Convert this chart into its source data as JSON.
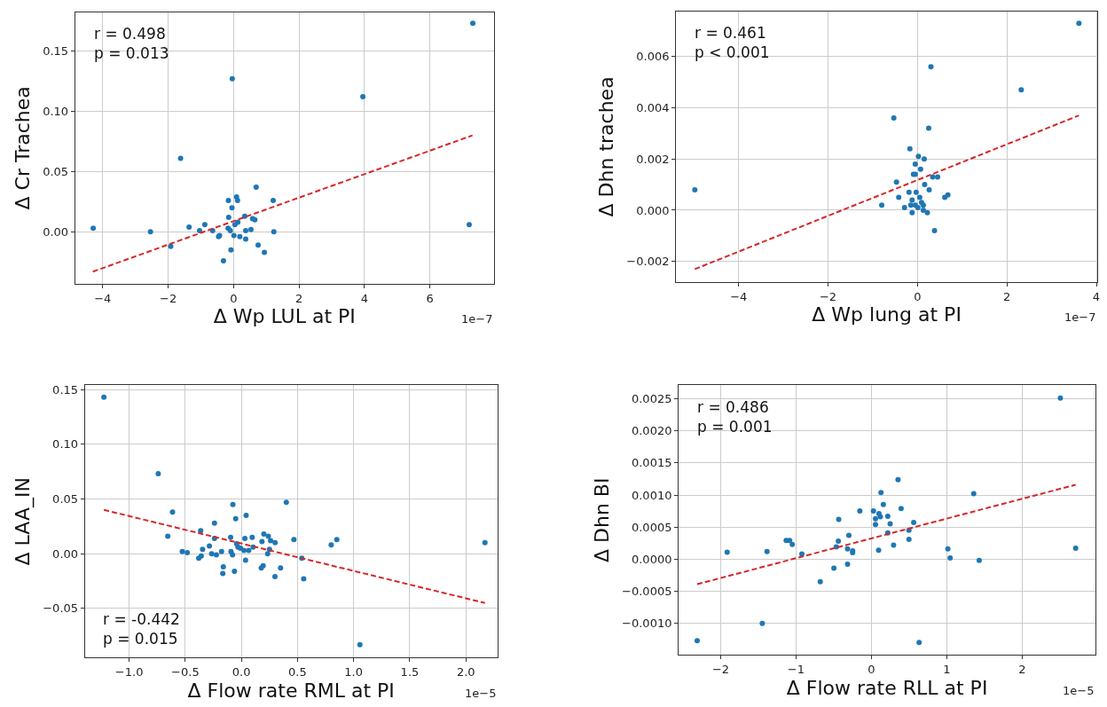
{
  "chart_data": [
    {
      "type": "scatter",
      "xlabel": "Δ Wp LUL at PI",
      "ylabel": "Δ Cr Trachea",
      "grid": true,
      "marker": "circle",
      "xlim": [
        -4.84,
        7.95
      ],
      "ylim": [
        -0.043,
        0.182
      ],
      "xticks": [
        {
          "value": -4,
          "label": "−4"
        },
        {
          "value": -2,
          "label": "−2"
        },
        0,
        2,
        4,
        6
      ],
      "yticks": [
        {
          "value": 0,
          "label": "0.00"
        },
        {
          "value": 0.05,
          "label": "0.05"
        },
        {
          "value": 0.1,
          "label": "0.10"
        },
        {
          "value": 0.15,
          "label": "0.15"
        }
      ],
      "annotations": [
        "r = 0.498\np = 0.013",
        "1e−7"
      ],
      "series": [
        {
          "color": "#1f77b4",
          "x": [
            7.31,
            -0.04,
            3.95,
            -1.62,
            0.69,
            0.09,
            0.12,
            -0.16,
            1.21,
            -0.05,
            -0.15,
            0.34,
            0.58,
            0.65,
            0.13,
            -0.88,
            -4.29,
            -1.36,
            7.2,
            -2.54,
            -1.04,
            -0.64,
            1.23,
            -0.43,
            -0.46,
            -0.17,
            -0.1,
            0.01,
            0.19,
            0.37,
            0.53,
            0.37,
            -1.92,
            0.75,
            -0.08,
            0.94,
            -0.31,
            0.04
          ],
          "values": [
            0.173,
            0.127,
            0.112,
            0.061,
            0.037,
            0.029,
            0.026,
            0.026,
            0.026,
            0.02,
            0.012,
            0.013,
            0.011,
            0.01,
            0.008,
            0.006,
            0.003,
            0.004,
            0.006,
            0.0,
            0.001,
            0.001,
            0.0,
            -0.003,
            -0.004,
            0.003,
            0.001,
            -0.003,
            -0.004,
            -0.006,
            0.002,
            0.001,
            -0.012,
            -0.011,
            -0.015,
            -0.017,
            -0.024,
            0.006
          ]
        },
        {
          "type": "line",
          "marker": "none",
          "color": "#d62728",
          "line_style": "dashed",
          "x": [
            -4.3,
            7.3
          ],
          "values": [
            -0.033,
            0.08
          ]
        }
      ]
    },
    {
      "type": "scatter",
      "xlabel": "Δ Wp lung at PI",
      "ylabel": "Δ Dhn trachea",
      "grid": true,
      "marker": "circle",
      "xlim": [
        -5.4,
        4.02
      ],
      "ylim": [
        -0.0028,
        0.00776
      ],
      "xticks": [
        {
          "value": -4,
          "label": "−4"
        },
        {
          "value": -2,
          "label": "−2"
        },
        0,
        2,
        4
      ],
      "yticks": [
        {
          "value": -0.002,
          "label": "−0.002"
        },
        {
          "value": 0,
          "label": "0.000"
        },
        {
          "value": 0.002,
          "label": "0.002"
        },
        {
          "value": 0.004,
          "label": "0.004"
        },
        {
          "value": 0.006,
          "label": "0.006"
        }
      ],
      "annotations": [
        "r = 0.461\np < 0.001",
        "1e−7"
      ],
      "series": [
        {
          "color": "#1f77b4",
          "x": [
            3.61,
            0.3,
            2.32,
            -0.53,
            0.25,
            -0.17,
            0.02,
            0.15,
            -0.05,
            0.07,
            -0.09,
            -0.05,
            0.34,
            0.45,
            -0.47,
            0.16,
            0.26,
            -4.98,
            -0.03,
            -0.19,
            0.68,
            0.61,
            -0.42,
            0.05,
            -0.12,
            0.09,
            -0.15,
            0.13,
            -0.8,
            -0.05,
            0.01,
            -0.29,
            0.13,
            0.22,
            -0.12,
            0.38
          ],
          "values": [
            0.0073,
            0.0056,
            0.0047,
            0.0036,
            0.0032,
            0.0024,
            0.0021,
            0.002,
            0.0018,
            0.0016,
            0.0014,
            0.0014,
            0.0013,
            0.0013,
            0.0011,
            0.001,
            0.0008,
            0.0008,
            0.0007,
            0.0007,
            0.0006,
            0.0005,
            0.0005,
            0.0005,
            0.0004,
            0.0003,
            0.0002,
            0.0002,
            0.0002,
            0.0002,
            0.0001,
            0.0001,
            0.0,
            -0.0001,
            -0.0001,
            -0.0008
          ]
        },
        {
          "type": "line",
          "marker": "none",
          "color": "#d62728",
          "line_style": "dashed",
          "x": [
            -4.98,
            3.61
          ],
          "values": [
            -0.0023,
            0.0037
          ]
        }
      ]
    },
    {
      "type": "scatter",
      "xlabel": "Δ Flow rate RML at PI",
      "ylabel": "Δ LAA_IN",
      "grid": true,
      "marker": "circle",
      "xlim": [
        -1.394,
        2.28
      ],
      "ylim": [
        -0.0948,
        0.1538
      ],
      "xticks": [
        {
          "value": -1,
          "label": "−1.0"
        },
        {
          "value": -0.5,
          "label": "−0.5"
        },
        {
          "value": 0,
          "label": "0.0"
        },
        {
          "value": 0.5,
          "label": "0.5"
        },
        {
          "value": 1,
          "label": "1.0"
        },
        {
          "value": 1.5,
          "label": "1.5"
        },
        {
          "value": 2,
          "label": "2.0"
        }
      ],
      "yticks": [
        {
          "value": -0.05,
          "label": "−0.05"
        },
        {
          "value": 0,
          "label": "0.00"
        },
        {
          "value": 0.05,
          "label": "0.05"
        },
        {
          "value": 0.1,
          "label": "0.10"
        },
        {
          "value": 0.15,
          "label": "0.15"
        }
      ],
      "annotations": [
        "r = -0.442\np = 0.015",
        "1e−5"
      ],
      "series": [
        {
          "color": "#1f77b4",
          "x": [
            -1.225,
            -0.741,
            0.4,
            -0.076,
            -0.614,
            0.042,
            -0.051,
            -0.24,
            -0.363,
            -0.656,
            -0.096,
            0.096,
            0.031,
            0.2,
            0.24,
            -0.24,
            0.468,
            0.85,
            0.183,
            0.26,
            0.3,
            2.17,
            0.8,
            -0.285,
            -0.042,
            -0.031,
            -0.008,
            0.104,
            -0.346,
            -0.177,
            -0.093,
            0.023,
            0.065,
            0.25,
            -0.527,
            -0.482,
            -0.079,
            -0.265,
            -0.223,
            0.234,
            -0.358,
            -0.38,
            0.538,
            0.037,
            -0.161,
            0.194,
            0.177,
            0.349,
            -0.166,
            -0.062,
            0.299,
            0.555,
            1.056
          ],
          "values": [
            0.143,
            0.073,
            0.047,
            0.045,
            0.038,
            0.035,
            0.032,
            0.028,
            0.021,
            0.016,
            0.015,
            0.015,
            0.014,
            0.018,
            0.016,
            0.014,
            0.013,
            0.013,
            0.011,
            0.012,
            0.01,
            0.01,
            0.008,
            0.007,
            0.009,
            0.006,
            0.005,
            0.006,
            0.004,
            0.002,
            0.002,
            0.003,
            0.003,
            0.004,
            0.002,
            0.001,
            -0.001,
            0.0,
            -0.001,
            0.0,
            -0.002,
            -0.004,
            -0.004,
            -0.006,
            -0.012,
            -0.011,
            -0.013,
            -0.013,
            -0.018,
            -0.016,
            -0.021,
            -0.023,
            -0.083
          ]
        },
        {
          "type": "line",
          "marker": "none",
          "color": "#d62728",
          "line_style": "dashed",
          "x": [
            -1.225,
            2.17
          ],
          "values": [
            0.04,
            -0.045
          ]
        }
      ]
    },
    {
      "type": "scatter",
      "xlabel": "Δ Flow rate RLL at PI",
      "ylabel": "Δ Dhn BI",
      "grid": true,
      "marker": "circle",
      "xlim": [
        -2.557,
        2.973
      ],
      "ylim": [
        -0.001492,
        0.00271
      ],
      "xticks": [
        {
          "value": -2,
          "label": "−2"
        },
        {
          "value": -1,
          "label": "−1"
        },
        0,
        1,
        2
      ],
      "yticks": [
        {
          "value": -0.001,
          "label": "−0.0010"
        },
        {
          "value": -0.0005,
          "label": "−0.0005"
        },
        {
          "value": 0,
          "label": "0.0000"
        },
        {
          "value": 0.0005,
          "label": "0.0005"
        },
        {
          "value": 0.001,
          "label": "0.0010"
        },
        {
          "value": 0.0015,
          "label": "0.0015"
        },
        {
          "value": 0.002,
          "label": "0.0020"
        },
        {
          "value": 0.0025,
          "label": "0.0025"
        }
      ],
      "annotations": [
        "r = 0.486\np = 0.001",
        "1e−5"
      ],
      "series": [
        {
          "color": "#1f77b4",
          "x": [
            2.507,
            0.353,
            0.127,
            1.357,
            0.158,
            0.394,
            -0.154,
            0.027,
            0.1,
            0.217,
            0.118,
            0.054,
            -0.434,
            0.249,
            0.561,
            0.054,
            0.498,
            0.217,
            -0.299,
            0.498,
            -1.131,
            -1.086,
            -0.439,
            -1.05,
            0.294,
            -0.466,
            2.71,
            -0.317,
            1.014,
            0.095,
            -0.249,
            -0.249,
            -1.914,
            -1.385,
            -0.923,
            1.045,
            1.43,
            -0.317,
            -0.498,
            -0.679,
            -1.448,
            -2.312,
            0.633
          ],
          "values": [
            0.00251,
            0.00124,
            0.00104,
            0.00102,
            0.00085,
            0.00079,
            0.00075,
            0.00075,
            0.00071,
            0.00067,
            0.00066,
            0.00063,
            0.00062,
            0.00055,
            0.00057,
            0.00054,
            0.00045,
            0.00041,
            0.00037,
            0.00031,
            0.00029,
            0.00029,
            0.00028,
            0.00023,
            0.00022,
            0.00019,
            0.00017,
            0.00016,
            0.00016,
            0.00014,
            0.00013,
            0.0001,
            0.00011,
            0.00012,
            8e-05,
            2e-05,
            -2e-05,
            -8e-05,
            -0.00014,
            -0.00035,
            -0.001,
            -0.00127,
            -0.0013
          ]
        },
        {
          "type": "line",
          "marker": "none",
          "color": "#d62728",
          "line_style": "dashed",
          "x": [
            -2.312,
            2.71
          ],
          "values": [
            -0.00039,
            0.00116
          ]
        }
      ]
    }
  ]
}
